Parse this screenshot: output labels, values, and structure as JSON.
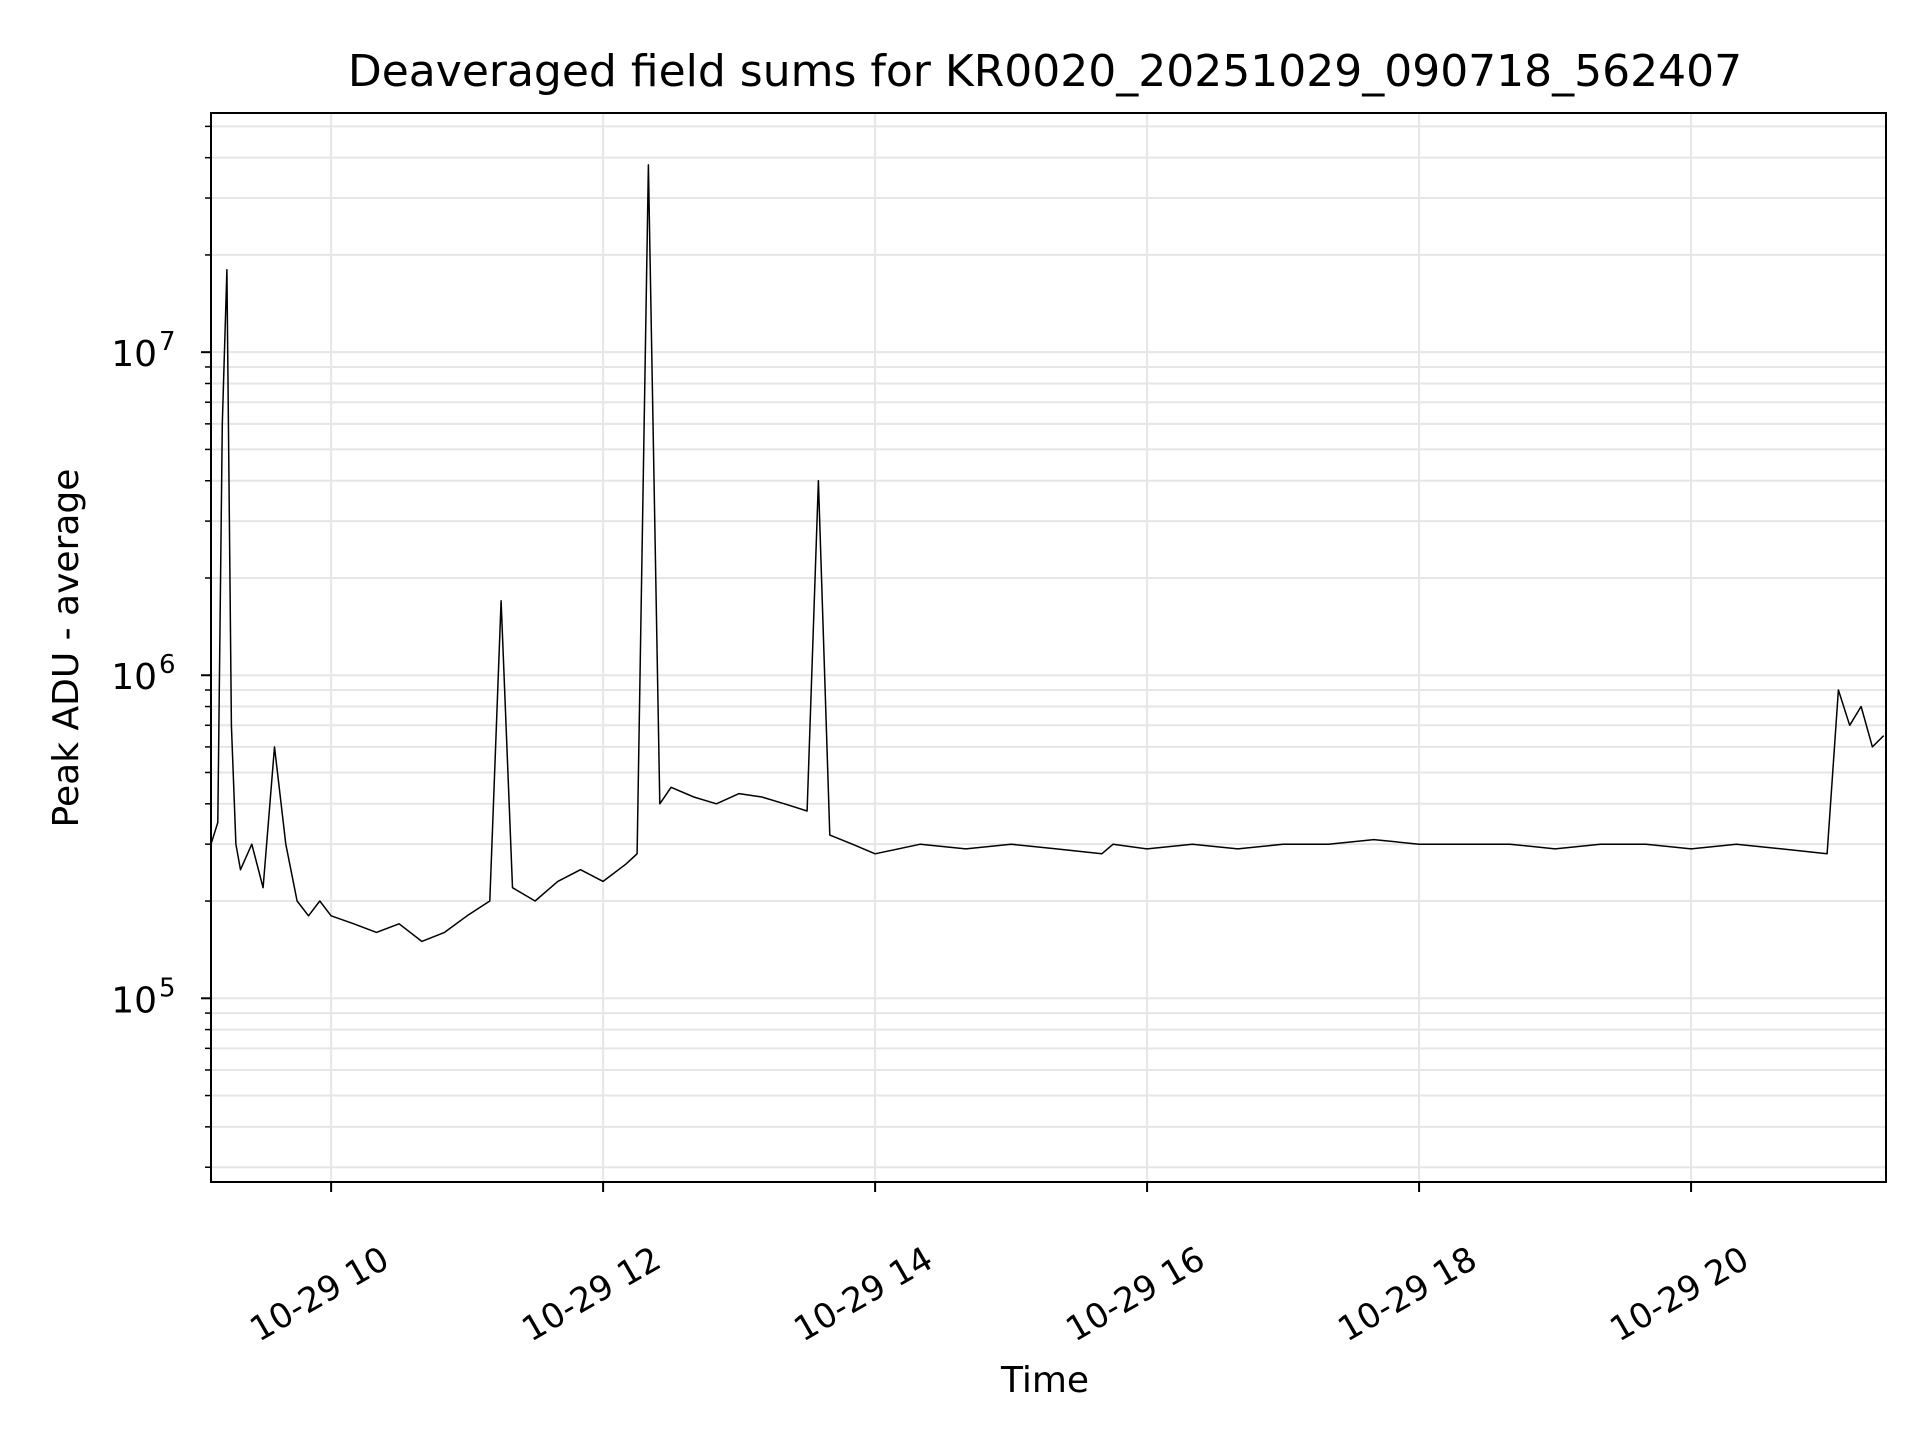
{
  "chart_data": {
    "type": "line",
    "title": "Deaveraged field sums for KR0020_20251029_090718_562407",
    "xlabel": "Time",
    "ylabel": "Peak ADU - average",
    "yscale": "log",
    "xlim": [
      "2025-10-29 09:07",
      "2025-10-29 21:26"
    ],
    "ylim": [
      27000,
      55000000
    ],
    "grid": true,
    "line_color": "#000000",
    "grid_color": "#e6e6e6",
    "x_ticks": [
      {
        "time": "2025-10-29 10:00",
        "label": "10-29 10"
      },
      {
        "time": "2025-10-29 12:00",
        "label": "10-29 12"
      },
      {
        "time": "2025-10-29 14:00",
        "label": "10-29 14"
      },
      {
        "time": "2025-10-29 16:00",
        "label": "10-29 16"
      },
      {
        "time": "2025-10-29 18:00",
        "label": "10-29 18"
      },
      {
        "time": "2025-10-29 20:00",
        "label": "10-29 20"
      }
    ],
    "y_ticks": [
      {
        "value": 100000,
        "base": "10",
        "exp": "5"
      },
      {
        "value": 1000000,
        "base": "10",
        "exp": "6"
      },
      {
        "value": 10000000,
        "base": "10",
        "exp": "7"
      }
    ],
    "series": [
      {
        "x": [
          "2025-10-29 09:07",
          "2025-10-29 09:10",
          "2025-10-29 09:12",
          "2025-10-29 09:14",
          "2025-10-29 09:16",
          "2025-10-29 09:18",
          "2025-10-29 09:20",
          "2025-10-29 09:25",
          "2025-10-29 09:30",
          "2025-10-29 09:35",
          "2025-10-29 09:40",
          "2025-10-29 09:45",
          "2025-10-29 09:50",
          "2025-10-29 09:55",
          "2025-10-29 10:00",
          "2025-10-29 10:10",
          "2025-10-29 10:20",
          "2025-10-29 10:30",
          "2025-10-29 10:40",
          "2025-10-29 10:50",
          "2025-10-29 11:00",
          "2025-10-29 11:10",
          "2025-10-29 11:15",
          "2025-10-29 11:20",
          "2025-10-29 11:30",
          "2025-10-29 11:40",
          "2025-10-29 11:50",
          "2025-10-29 12:00",
          "2025-10-29 12:10",
          "2025-10-29 12:15",
          "2025-10-29 12:20",
          "2025-10-29 12:25",
          "2025-10-29 12:30",
          "2025-10-29 12:40",
          "2025-10-29 12:50",
          "2025-10-29 13:00",
          "2025-10-29 13:10",
          "2025-10-29 13:20",
          "2025-10-29 13:30",
          "2025-10-29 13:35",
          "2025-10-29 13:40",
          "2025-10-29 13:50",
          "2025-10-29 14:00",
          "2025-10-29 14:20",
          "2025-10-29 14:40",
          "2025-10-29 15:00",
          "2025-10-29 15:20",
          "2025-10-29 15:40",
          "2025-10-29 15:45",
          "2025-10-29 16:00",
          "2025-10-29 16:20",
          "2025-10-29 16:40",
          "2025-10-29 17:00",
          "2025-10-29 17:20",
          "2025-10-29 17:40",
          "2025-10-29 18:00",
          "2025-10-29 18:20",
          "2025-10-29 18:40",
          "2025-10-29 19:00",
          "2025-10-29 19:20",
          "2025-10-29 19:40",
          "2025-10-29 20:00",
          "2025-10-29 20:20",
          "2025-10-29 20:40",
          "2025-10-29 21:00",
          "2025-10-29 21:05",
          "2025-10-29 21:10",
          "2025-10-29 21:15",
          "2025-10-29 21:20",
          "2025-10-29 21:25"
        ],
        "y": [
          300000,
          350000,
          6000000,
          18000000,
          700000,
          300000,
          250000,
          300000,
          220000,
          600000,
          300000,
          200000,
          180000,
          200000,
          180000,
          170000,
          160000,
          170000,
          150000,
          160000,
          180000,
          200000,
          1700000,
          220000,
          200000,
          230000,
          250000,
          230000,
          260000,
          280000,
          38000000,
          400000,
          450000,
          420000,
          400000,
          430000,
          420000,
          400000,
          380000,
          4000000,
          320000,
          300000,
          280000,
          300000,
          290000,
          300000,
          290000,
          280000,
          300000,
          290000,
          300000,
          290000,
          300000,
          300000,
          310000,
          300000,
          300000,
          300000,
          290000,
          300000,
          300000,
          290000,
          300000,
          290000,
          280000,
          900000,
          700000,
          800000,
          600000,
          650000
        ]
      }
    ]
  }
}
